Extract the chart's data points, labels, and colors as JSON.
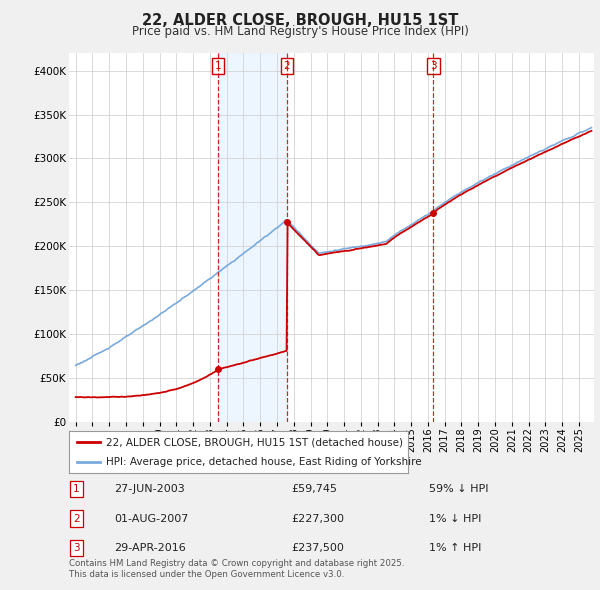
{
  "title": "22, ALDER CLOSE, BROUGH, HU15 1ST",
  "subtitle": "Price paid vs. HM Land Registry's House Price Index (HPI)",
  "bg_color": "#f0f0f0",
  "plot_bg_color": "#ffffff",
  "ylim": [
    0,
    420000
  ],
  "yticks": [
    0,
    50000,
    100000,
    150000,
    200000,
    250000,
    300000,
    350000,
    400000
  ],
  "ytick_labels": [
    "£0",
    "£50K",
    "£100K",
    "£150K",
    "£200K",
    "£250K",
    "£300K",
    "£350K",
    "£400K"
  ],
  "xlim_start": 1994.6,
  "xlim_end": 2025.9,
  "xtick_years": [
    1995,
    1996,
    1997,
    1998,
    1999,
    2000,
    2001,
    2002,
    2003,
    2004,
    2005,
    2006,
    2007,
    2008,
    2009,
    2010,
    2011,
    2012,
    2013,
    2014,
    2015,
    2016,
    2017,
    2018,
    2019,
    2020,
    2021,
    2022,
    2023,
    2024,
    2025
  ],
  "sale_dates": [
    2003.487,
    2007.583,
    2016.328
  ],
  "sale_prices": [
    59745,
    227300,
    237500
  ],
  "sale_labels": [
    "1",
    "2",
    "3"
  ],
  "hpi_line_color": "#7aaadd",
  "hpi_fill_color": "#ddeeff",
  "price_line_color": "#cc0000",
  "vline_color": "#cc0000",
  "annotations": [
    {
      "label": "1",
      "date": "27-JUN-2003",
      "price": "£59,745",
      "hpi_diff": "59% ↓ HPI"
    },
    {
      "label": "2",
      "date": "01-AUG-2007",
      "price": "£227,300",
      "hpi_diff": "1% ↓ HPI"
    },
    {
      "label": "3",
      "date": "29-APR-2016",
      "price": "£237,500",
      "hpi_diff": "1% ↑ HPI"
    }
  ],
  "footer": "Contains HM Land Registry data © Crown copyright and database right 2025.\nThis data is licensed under the Open Government Licence v3.0.",
  "legend_entries": [
    "22, ALDER CLOSE, BROUGH, HU15 1ST (detached house)",
    "HPI: Average price, detached house, East Riding of Yorkshire"
  ]
}
